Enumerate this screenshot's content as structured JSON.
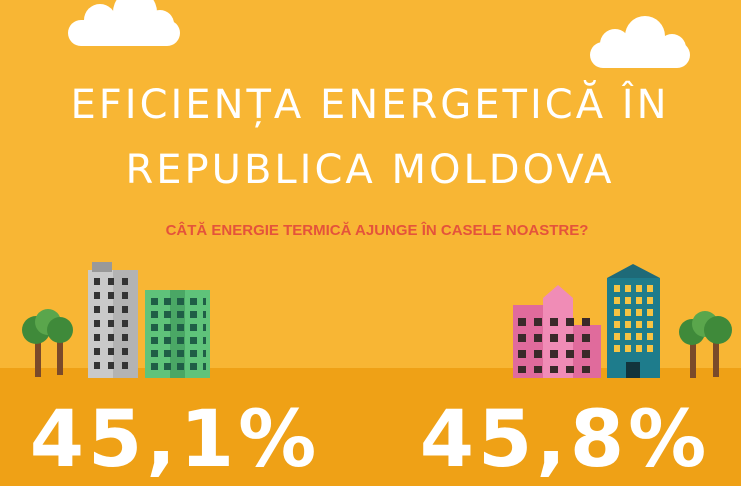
{
  "header": {
    "title_lines": [
      "EFICIENȚA ENERGETICĂ ÎN",
      "REPUBLICA MOLDOVA"
    ],
    "subtitle": "CÂTĂ ENERGIE TERMICĂ AJUNGE ÎN CASELE NOASTRE?"
  },
  "stats": [
    "45,1%",
    "45,8%"
  ]
}
